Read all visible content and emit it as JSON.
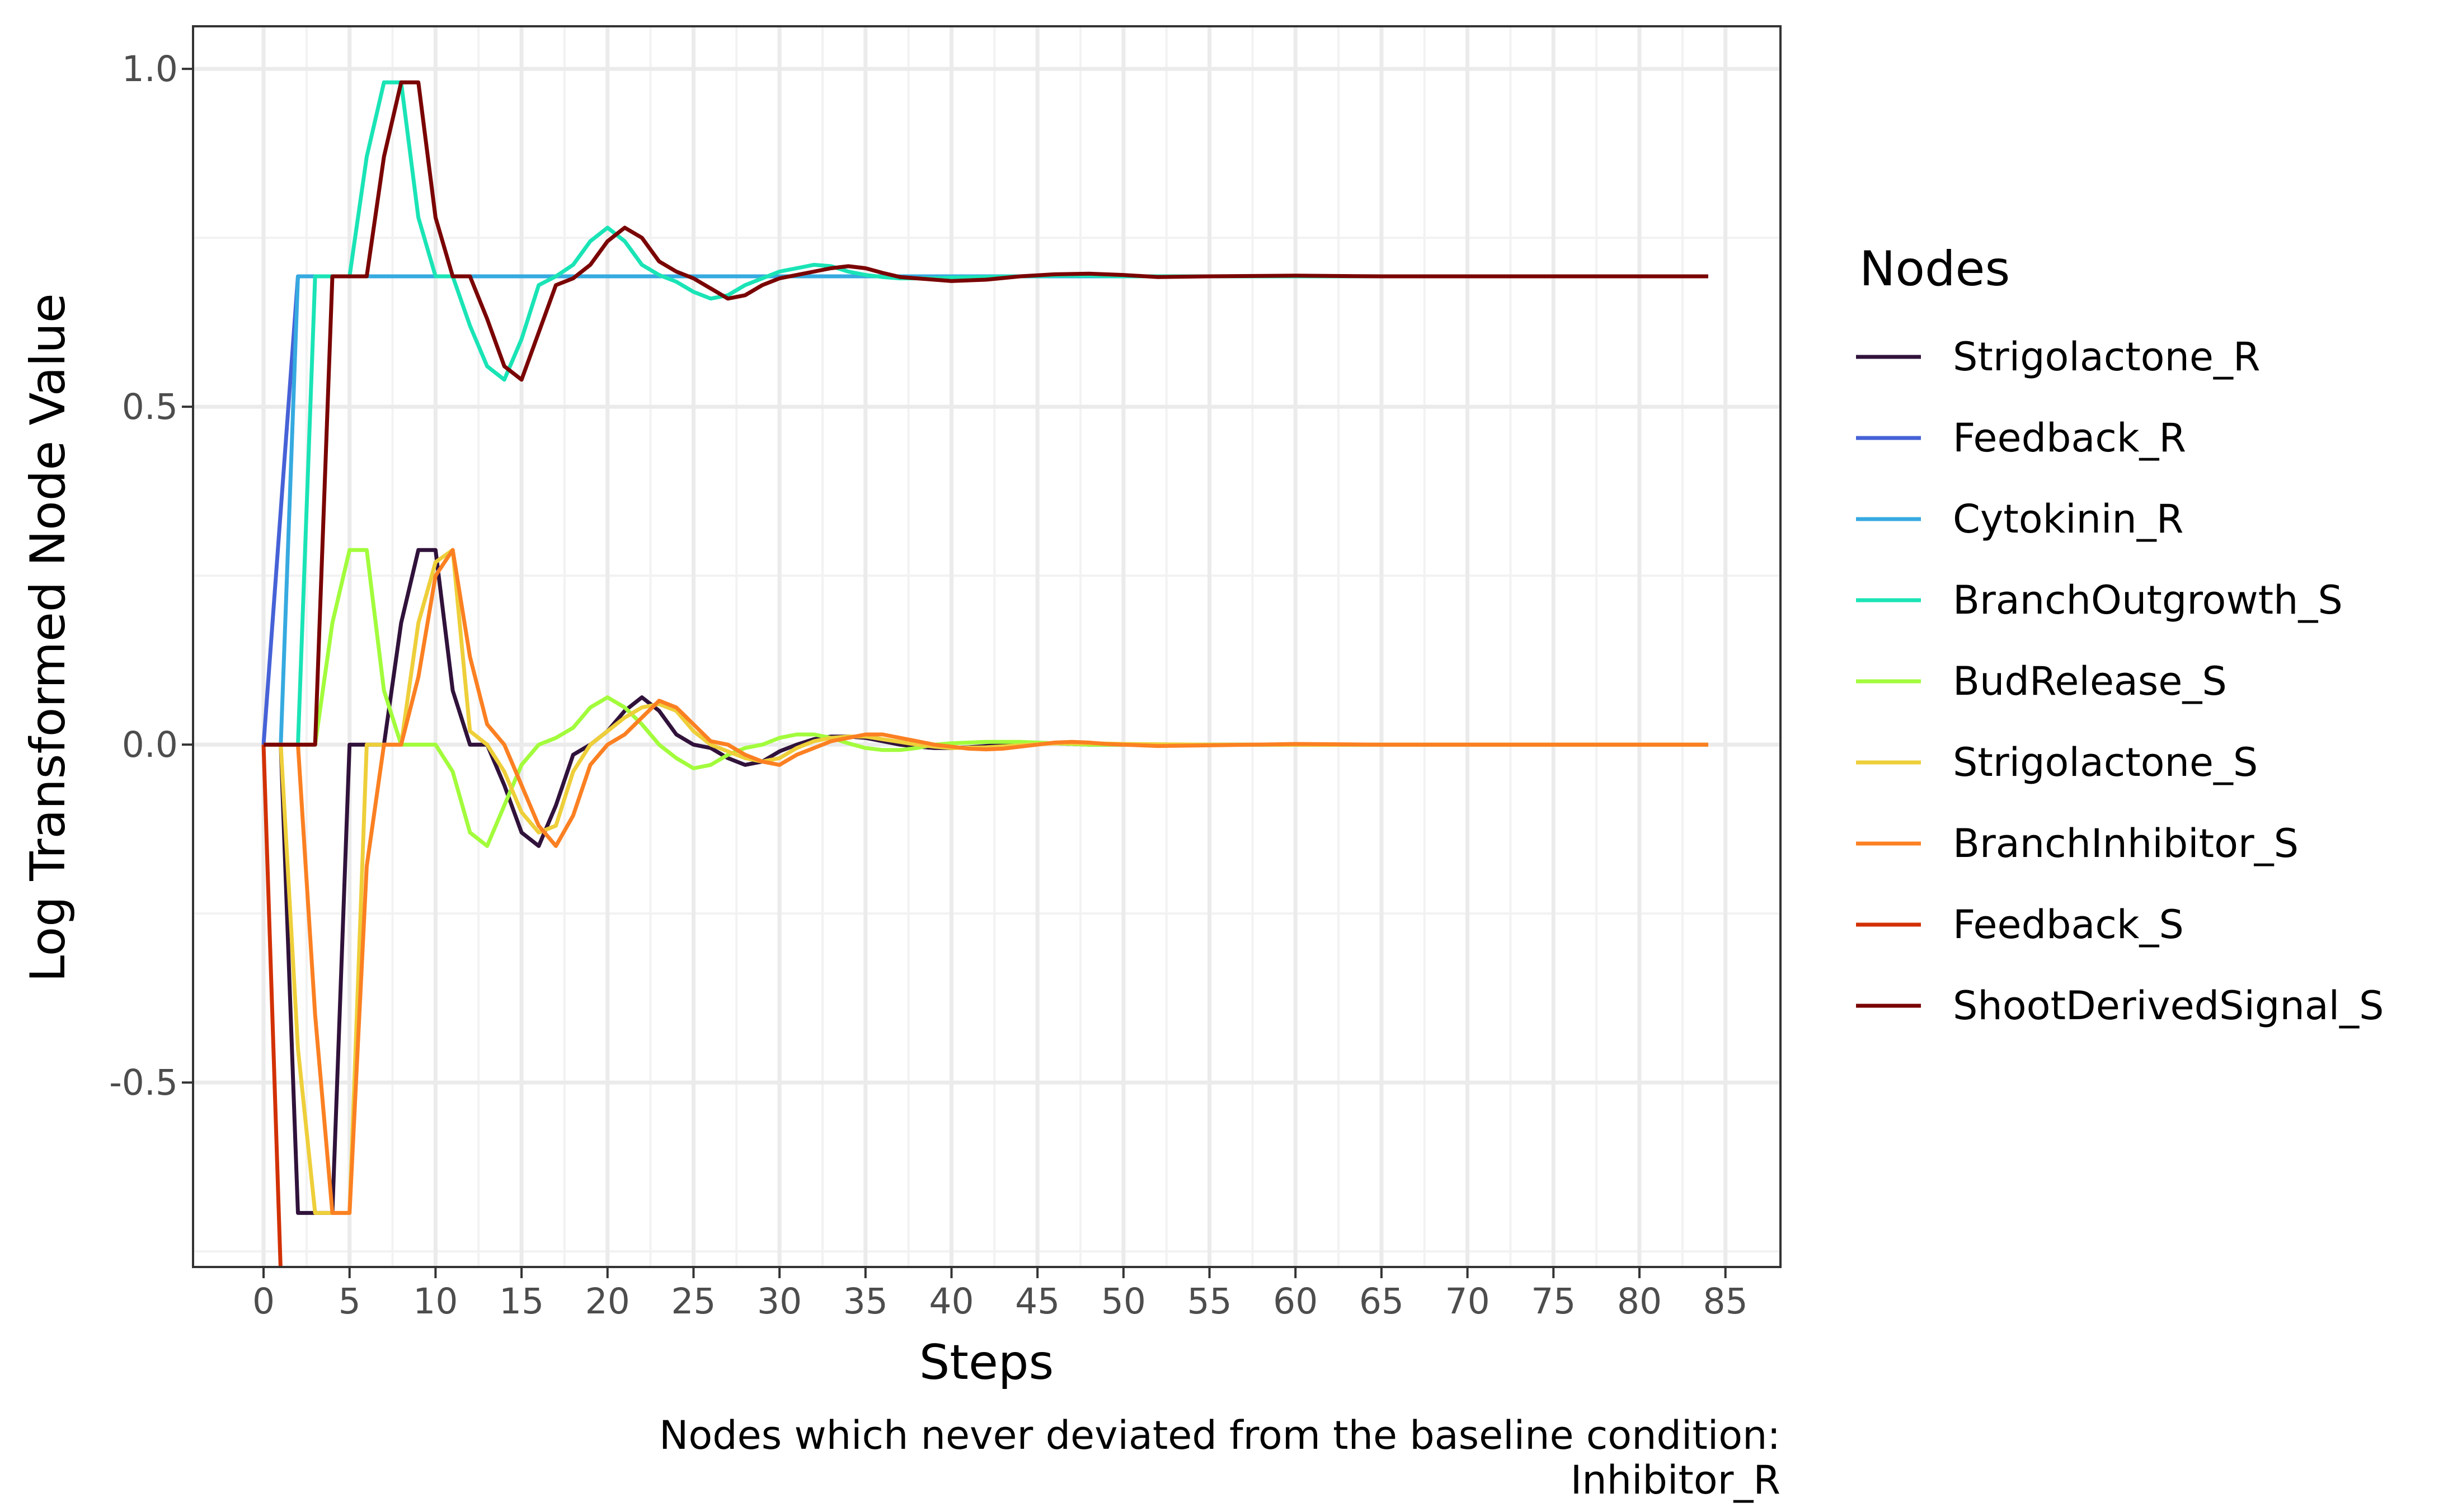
{
  "chart_data": {
    "type": "line",
    "xlabel": "Steps",
    "ylabel": "Log Transformed Node Value",
    "xlim": [
      -4.1,
      88.2
    ],
    "ylim": [
      -0.773,
      1.063
    ],
    "x_ticks": [
      0,
      5,
      10,
      15,
      20,
      25,
      30,
      35,
      40,
      45,
      50,
      55,
      60,
      65,
      70,
      75,
      80,
      85
    ],
    "x_tick_labels": [
      "0",
      "5",
      "10",
      "15",
      "20",
      "25",
      "30",
      "35",
      "40",
      "45",
      "50",
      "55",
      "60",
      "65",
      "70",
      "75",
      "80",
      "85"
    ],
    "y_ticks": [
      -0.5,
      0.0,
      0.5,
      1.0
    ],
    "y_tick_labels": [
      "-0.5",
      "0.0",
      "0.5",
      "1.0"
    ],
    "grid": true,
    "legend": {
      "title": "Nodes",
      "placement": "right"
    },
    "caption": [
      "Nodes which never deviated from the baseline condition:",
      "Inhibitor_R"
    ],
    "series": [
      {
        "name": "Strigolactone_R",
        "color": "#30123b",
        "x": [
          0,
          1,
          2,
          3,
          4,
          5,
          6,
          7,
          8,
          9,
          10,
          11,
          12,
          13,
          14,
          15,
          16,
          17,
          18,
          19,
          20,
          21,
          22,
          23,
          24,
          25,
          26,
          27,
          28,
          29,
          30,
          31,
          32,
          33,
          34,
          35,
          36,
          37,
          38,
          39,
          40,
          41,
          42,
          43,
          44,
          45,
          46,
          47,
          48,
          49,
          50,
          55,
          60,
          65,
          70,
          75,
          80,
          84
        ],
        "y": [
          0,
          0,
          -0.693,
          -0.693,
          -0.693,
          0,
          0,
          0,
          0.18,
          0.288,
          0.288,
          0.08,
          0,
          0,
          -0.06,
          -0.13,
          -0.15,
          -0.09,
          -0.015,
          0,
          0.02,
          0.05,
          0.07,
          0.05,
          0.015,
          0,
          -0.005,
          -0.02,
          -0.03,
          -0.025,
          -0.01,
          0,
          0.008,
          0.012,
          0.012,
          0.01,
          0.005,
          0,
          -0.003,
          -0.005,
          -0.005,
          -0.004,
          -0.002,
          0,
          0.002,
          0.002,
          0.002,
          0.001,
          0,
          0,
          0,
          0,
          0,
          0,
          0,
          0,
          0,
          0
        ]
      },
      {
        "name": "Feedback_R",
        "color": "#4662d7",
        "x": [
          0,
          2,
          84
        ],
        "y": [
          0,
          0.693,
          0.693
        ]
      },
      {
        "name": "Cytokinin_R",
        "color": "#36aae0",
        "x": [
          0,
          1,
          2,
          84
        ],
        "y": [
          0,
          0,
          0.693,
          0.693
        ]
      },
      {
        "name": "BranchOutgrowth_S",
        "color": "#1ae4b6",
        "x": [
          0,
          1,
          2,
          3,
          4,
          5,
          6,
          7,
          8,
          9,
          10,
          11,
          12,
          13,
          14,
          15,
          16,
          17,
          18,
          19,
          20,
          21,
          22,
          23,
          24,
          25,
          26,
          27,
          28,
          29,
          30,
          31,
          32,
          33,
          34,
          35,
          36,
          37,
          38,
          39,
          40,
          42,
          44,
          46,
          48,
          50,
          55,
          60,
          65,
          70,
          75,
          80,
          84
        ],
        "y": [
          0,
          0,
          0,
          0.693,
          0.693,
          0.693,
          0.87,
          0.98,
          0.98,
          0.78,
          0.693,
          0.693,
          0.62,
          0.56,
          0.54,
          0.6,
          0.68,
          0.693,
          0.71,
          0.745,
          0.765,
          0.745,
          0.71,
          0.695,
          0.685,
          0.67,
          0.66,
          0.665,
          0.68,
          0.69,
          0.7,
          0.705,
          0.71,
          0.708,
          0.7,
          0.695,
          0.692,
          0.69,
          0.69,
          0.69,
          0.691,
          0.692,
          0.693,
          0.694,
          0.694,
          0.693,
          0.693,
          0.693,
          0.693,
          0.693,
          0.693,
          0.693,
          0.693
        ]
      },
      {
        "name": "BudRelease_S",
        "color": "#a2fc3c",
        "x": [
          0,
          1,
          2,
          3,
          4,
          5,
          6,
          7,
          8,
          9,
          10,
          11,
          12,
          13,
          14,
          15,
          16,
          17,
          18,
          19,
          20,
          21,
          22,
          23,
          24,
          25,
          26,
          27,
          28,
          29,
          30,
          31,
          32,
          33,
          34,
          35,
          36,
          37,
          38,
          39,
          40,
          42,
          44,
          46,
          48,
          50,
          55,
          60,
          65,
          70,
          75,
          80,
          84
        ],
        "y": [
          0,
          0,
          0,
          0,
          0.18,
          0.288,
          0.288,
          0.08,
          0,
          0,
          0,
          -0.04,
          -0.13,
          -0.15,
          -0.09,
          -0.03,
          0,
          0.01,
          0.025,
          0.055,
          0.07,
          0.055,
          0.03,
          0,
          -0.02,
          -0.035,
          -0.03,
          -0.015,
          -0.005,
          0,
          0.01,
          0.015,
          0.015,
          0.01,
          0.002,
          -0.005,
          -0.008,
          -0.008,
          -0.005,
          0,
          0.002,
          0.004,
          0.004,
          0.002,
          0,
          0,
          0,
          0,
          0,
          0,
          0,
          0,
          0
        ]
      },
      {
        "name": "Strigolactone_S",
        "color": "#eecf3a",
        "x": [
          0,
          1,
          2,
          3,
          4,
          5,
          6,
          7,
          8,
          9,
          10,
          11,
          12,
          13,
          14,
          15,
          16,
          17,
          18,
          19,
          20,
          21,
          22,
          23,
          24,
          25,
          26,
          27,
          28,
          29,
          30,
          31,
          32,
          33,
          34,
          35,
          36,
          37,
          38,
          39,
          40,
          42,
          44,
          46,
          48,
          50,
          55,
          60,
          65,
          70,
          75,
          80,
          84
        ],
        "y": [
          0,
          0,
          -0.45,
          -0.693,
          -0.693,
          -0.693,
          0,
          0,
          0,
          0.18,
          0.27,
          0.288,
          0.02,
          0,
          -0.04,
          -0.1,
          -0.13,
          -0.12,
          -0.04,
          0,
          0.02,
          0.04,
          0.055,
          0.06,
          0.05,
          0.02,
          0,
          -0.01,
          -0.02,
          -0.025,
          -0.02,
          -0.005,
          0.005,
          0.01,
          0.012,
          0.012,
          0.008,
          0.004,
          0,
          -0.003,
          -0.005,
          -0.004,
          -0.001,
          0.002,
          0.002,
          0.001,
          0,
          0,
          0,
          0,
          0,
          0,
          0
        ]
      },
      {
        "name": "BranchInhibitor_S",
        "color": "#fb8022",
        "x": [
          0,
          1,
          2,
          3,
          4,
          5,
          6,
          7,
          8,
          9,
          10,
          11,
          12,
          13,
          14,
          15,
          16,
          17,
          18,
          19,
          20,
          21,
          22,
          23,
          24,
          25,
          26,
          27,
          28,
          29,
          30,
          31,
          32,
          33,
          34,
          35,
          36,
          37,
          38,
          39,
          40,
          41,
          42,
          43,
          44,
          45,
          46,
          47,
          48,
          49,
          50,
          52,
          55,
          60,
          65,
          70,
          75,
          80,
          84
        ],
        "y": [
          0,
          0,
          0,
          -0.4,
          -0.693,
          -0.693,
          -0.18,
          0,
          0,
          0.1,
          0.25,
          0.288,
          0.13,
          0.03,
          0,
          -0.06,
          -0.12,
          -0.15,
          -0.105,
          -0.03,
          0,
          0.015,
          0.04,
          0.065,
          0.055,
          0.03,
          0.005,
          0,
          -0.015,
          -0.025,
          -0.03,
          -0.015,
          -0.005,
          0.005,
          0.01,
          0.015,
          0.015,
          0.01,
          0.005,
          0,
          -0.003,
          -0.006,
          -0.007,
          -0.006,
          -0.003,
          0,
          0.003,
          0.004,
          0.003,
          0.001,
          0,
          -0.002,
          -0.001,
          0.001,
          0,
          0,
          0,
          0,
          0
        ]
      },
      {
        "name": "Feedback_S",
        "color": "#d23105",
        "x": [
          0,
          0.99
        ],
        "y": [
          0,
          -0.773
        ]
      },
      {
        "name": "ShootDerivedSignal_S",
        "color": "#7a0403",
        "x": [
          0,
          1,
          2,
          3,
          4,
          5,
          6,
          7,
          8,
          9,
          10,
          11,
          12,
          13,
          14,
          15,
          16,
          17,
          18,
          19,
          20,
          21,
          22,
          23,
          24,
          25,
          26,
          27,
          28,
          29,
          30,
          31,
          32,
          33,
          34,
          35,
          36,
          37,
          38,
          39,
          40,
          42,
          44,
          46,
          48,
          50,
          52,
          55,
          60,
          65,
          70,
          75,
          80,
          84
        ],
        "y": [
          0,
          0,
          0,
          0,
          0.693,
          0.693,
          0.693,
          0.87,
          0.98,
          0.98,
          0.78,
          0.693,
          0.693,
          0.63,
          0.56,
          0.54,
          0.61,
          0.68,
          0.69,
          0.71,
          0.745,
          0.765,
          0.75,
          0.715,
          0.7,
          0.69,
          0.675,
          0.66,
          0.665,
          0.68,
          0.69,
          0.695,
          0.7,
          0.705,
          0.708,
          0.705,
          0.698,
          0.692,
          0.69,
          0.688,
          0.686,
          0.688,
          0.693,
          0.696,
          0.697,
          0.695,
          0.692,
          0.693,
          0.694,
          0.693,
          0.693,
          0.693,
          0.693,
          0.693
        ]
      }
    ]
  }
}
